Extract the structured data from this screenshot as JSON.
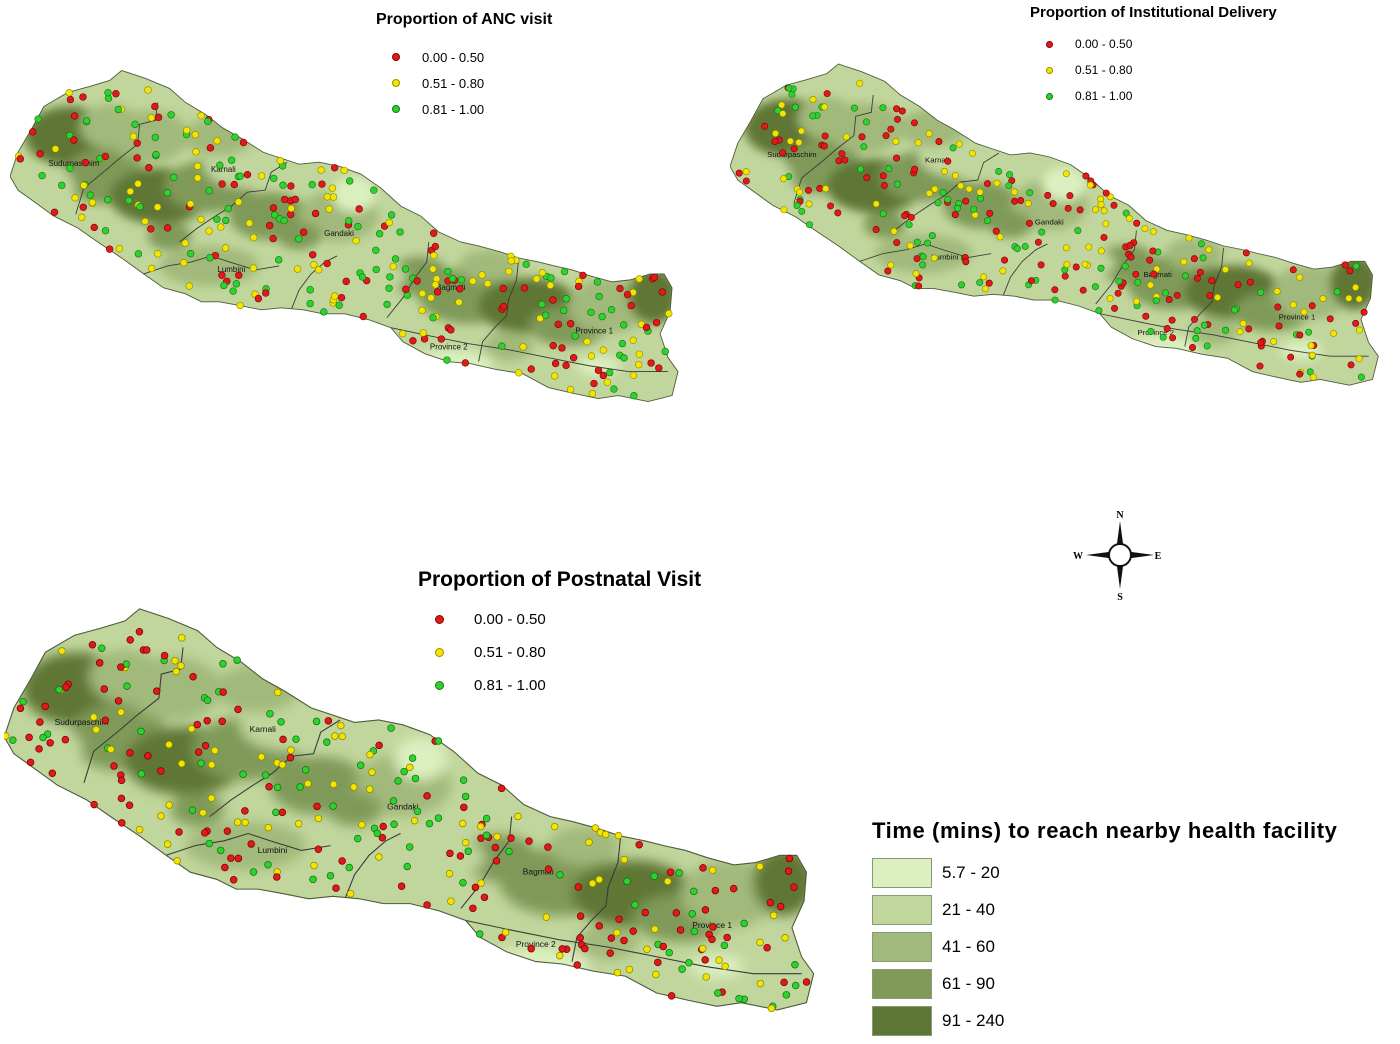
{
  "panels": [
    {
      "title": "Proportion of ANC visit",
      "kind": "anc"
    },
    {
      "title": "Proportion of Institutional Delivery",
      "kind": "inst"
    },
    {
      "title": "Proportion of Postnatal Visit",
      "kind": "pnc"
    }
  ],
  "point_legend": {
    "classes": [
      {
        "label": "0.00 - 0.50",
        "color": "#e01a1a"
      },
      {
        "label": "0.51 - 0.80",
        "color": "#f2e600"
      },
      {
        "label": "0.81 - 1.00",
        "color": "#2fd12f"
      }
    ]
  },
  "time_legend": {
    "title": "Time (mins) to reach nearby health facility",
    "classes": [
      {
        "label": "5.7 - 20",
        "color": "#dbefc0"
      },
      {
        "label": "21 - 40",
        "color": "#c1d69c"
      },
      {
        "label": "41 - 60",
        "color": "#a1b97a"
      },
      {
        "label": "61 - 90",
        "color": "#7f9a58"
      },
      {
        "label": "91 - 240",
        "color": "#5e7634"
      }
    ]
  },
  "provinces": [
    "Sudurpaschim",
    "Karnali",
    "Gandaki",
    "Lumbini",
    "Bagmati",
    "Province 1",
    "Province 2"
  ],
  "compass": {
    "n": "N",
    "s": "S",
    "e": "E",
    "w": "W"
  }
}
